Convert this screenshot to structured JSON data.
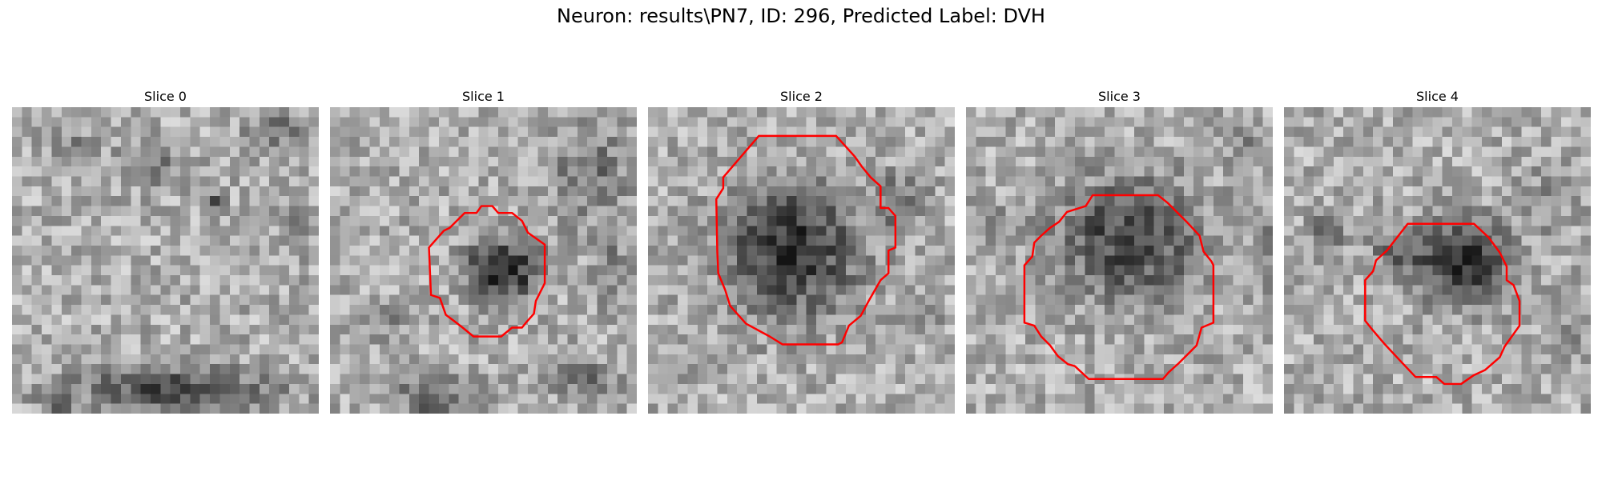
{
  "figure": {
    "title": "Neuron: results\\PN7, ID: 296, Predicted Label: DVH"
  },
  "style": {
    "contour_color": "#ff0000"
  },
  "panels": [
    {
      "title": "Slice 0",
      "has_contour": false
    },
    {
      "title": "Slice 1",
      "has_contour": true
    },
    {
      "title": "Slice 2",
      "has_contour": true
    },
    {
      "title": "Slice 3",
      "has_contour": true
    },
    {
      "title": "Slice 4",
      "has_contour": true
    }
  ]
}
